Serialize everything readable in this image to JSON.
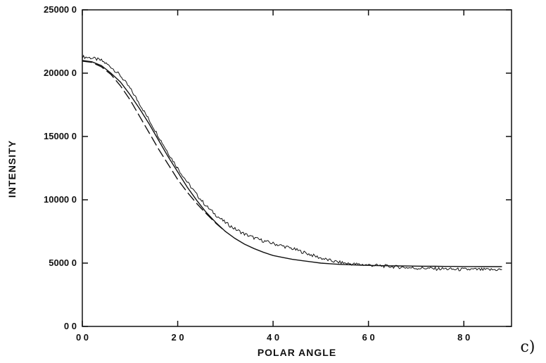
{
  "chart_data": {
    "type": "line",
    "title": "",
    "xlabel": "POLAR ANGLE",
    "ylabel": "INTENSITY",
    "panel_label": "c)",
    "xlim": [
      0,
      90
    ],
    "ylim": [
      0,
      25000
    ],
    "x_ticks": [
      0,
      20,
      40,
      60,
      80
    ],
    "x_tick_labels": [
      "0 0",
      "2 0",
      "4 0",
      "6 0",
      "8 0"
    ],
    "y_ticks": [
      0,
      5000,
      10000,
      15000,
      20000,
      25000
    ],
    "y_tick_labels": [
      "0 0",
      "5000 0",
      "10000 0",
      "15000 0",
      "20000 0",
      "25000 0"
    ],
    "grid": false,
    "series": [
      {
        "style": "noisy",
        "x": [
          0,
          2,
          4,
          6,
          8,
          10,
          12,
          14,
          16,
          18,
          20,
          22,
          24,
          26,
          28,
          30,
          32,
          34,
          36,
          38,
          40,
          42,
          44,
          46,
          48,
          50,
          52,
          54,
          56,
          58,
          60,
          62,
          64,
          66,
          68,
          70,
          72,
          74,
          76,
          78,
          80,
          82,
          84,
          86,
          88
        ],
        "values": [
          21300,
          21200,
          21000,
          20500,
          19800,
          18800,
          17600,
          16300,
          15000,
          13700,
          12500,
          11400,
          10400,
          9500,
          8800,
          8200,
          7700,
          7300,
          7000,
          6750,
          6550,
          6350,
          6150,
          5900,
          5650,
          5400,
          5200,
          5050,
          4950,
          4900,
          4850,
          4800,
          4750,
          4700,
          4650,
          4600,
          4600,
          4550,
          4550,
          4500,
          4500,
          4500,
          4480,
          4480,
          4500
        ]
      },
      {
        "style": "solid",
        "x": [
          0,
          2,
          4,
          6,
          8,
          10,
          12,
          14,
          16,
          18,
          20,
          22,
          24,
          26,
          28,
          30,
          32,
          34,
          36,
          38,
          40,
          42,
          44,
          46,
          48,
          50,
          52,
          54,
          56,
          58,
          60,
          62,
          64,
          66,
          68,
          70,
          72,
          74,
          76,
          78,
          80,
          82,
          84,
          86,
          88
        ],
        "values": [
          21000,
          20900,
          20600,
          20000,
          19300,
          18300,
          17200,
          16000,
          14700,
          13400,
          12200,
          11000,
          9950,
          9000,
          8200,
          7500,
          6950,
          6500,
          6150,
          5850,
          5600,
          5450,
          5300,
          5200,
          5100,
          5000,
          4950,
          4900,
          4870,
          4840,
          4820,
          4800,
          4790,
          4780,
          4770,
          4760,
          4750,
          4750,
          4740,
          4740,
          4730,
          4730,
          4720,
          4720,
          4720
        ]
      },
      {
        "style": "dashed",
        "x": [
          0,
          2,
          4,
          6,
          8,
          10,
          12,
          14,
          16,
          18,
          20,
          22,
          24,
          26,
          28,
          30
        ],
        "values": [
          20950,
          20850,
          20500,
          19900,
          19000,
          17900,
          16600,
          15300,
          14000,
          12800,
          11600,
          10600,
          9700,
          8900,
          8150,
          7500
        ]
      }
    ]
  }
}
